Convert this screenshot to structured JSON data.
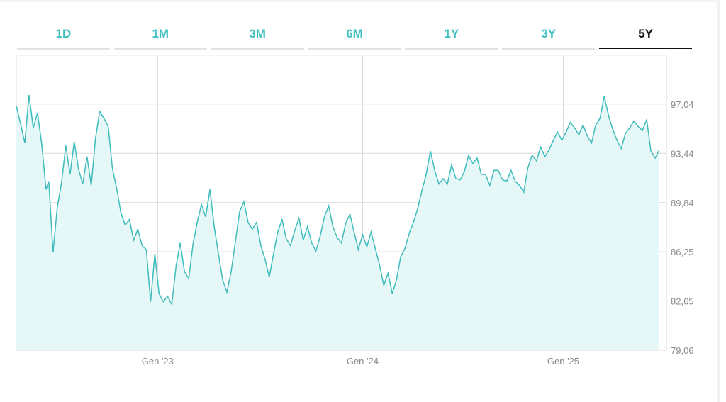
{
  "tabs": [
    {
      "label": "1D",
      "active": false
    },
    {
      "label": "1M",
      "active": false
    },
    {
      "label": "3M",
      "active": false
    },
    {
      "label": "6M",
      "active": false
    },
    {
      "label": "1Y",
      "active": false
    },
    {
      "label": "3Y",
      "active": false
    },
    {
      "label": "5Y",
      "active": true
    }
  ],
  "colors": {
    "accent": "#3fc1c0",
    "fill": "#e6f7f7",
    "line": "#3fbcbb",
    "grid": "#d9d9d9"
  },
  "chart_data": {
    "type": "area",
    "x_tick_labels": [
      "Gen '23",
      "Gen '24",
      "Gen '25"
    ],
    "y_tick_labels": [
      "79,06",
      "82,65",
      "86,25",
      "89,84",
      "93,44",
      "97,04"
    ],
    "y_ticks": [
      79.06,
      82.65,
      86.25,
      89.84,
      93.44,
      97.04
    ],
    "ylim": [
      79.06,
      100.6
    ],
    "x_range": [
      "2022-03",
      "2025-02"
    ],
    "grid": true,
    "series": [
      {
        "values": [
          [
            0.0,
            96.9
          ],
          [
            0.3,
            95.6
          ],
          [
            0.6,
            94.2
          ],
          [
            0.9,
            97.7
          ],
          [
            1.2,
            95.3
          ],
          [
            1.5,
            96.4
          ],
          [
            1.8,
            94.1
          ],
          [
            2.1,
            90.8
          ],
          [
            2.3,
            91.4
          ],
          [
            2.6,
            86.2
          ],
          [
            2.9,
            89.5
          ],
          [
            3.2,
            91.3
          ],
          [
            3.5,
            94.0
          ],
          [
            3.8,
            91.9
          ],
          [
            4.1,
            94.3
          ],
          [
            4.4,
            92.3
          ],
          [
            4.7,
            91.2
          ],
          [
            5.0,
            93.2
          ],
          [
            5.3,
            91.1
          ],
          [
            5.6,
            94.5
          ],
          [
            5.9,
            96.5
          ],
          [
            6.2,
            96.0
          ],
          [
            6.5,
            95.4
          ],
          [
            6.8,
            92.3
          ],
          [
            7.1,
            90.9
          ],
          [
            7.4,
            89.1
          ],
          [
            7.7,
            88.2
          ],
          [
            8.0,
            88.6
          ],
          [
            8.3,
            87.1
          ],
          [
            8.6,
            87.9
          ],
          [
            8.9,
            86.7
          ],
          [
            9.2,
            86.4
          ],
          [
            9.5,
            82.6
          ],
          [
            9.8,
            86.1
          ],
          [
            10.1,
            83.2
          ],
          [
            10.4,
            82.6
          ],
          [
            10.7,
            83.0
          ],
          [
            11.0,
            82.4
          ],
          [
            11.3,
            85.2
          ],
          [
            11.6,
            86.9
          ],
          [
            11.9,
            84.8
          ],
          [
            12.2,
            84.3
          ],
          [
            12.5,
            86.8
          ],
          [
            12.8,
            88.4
          ],
          [
            13.1,
            89.7
          ],
          [
            13.4,
            88.8
          ],
          [
            13.7,
            90.8
          ],
          [
            14.0,
            88.1
          ],
          [
            14.3,
            86.1
          ],
          [
            14.6,
            84.2
          ],
          [
            14.9,
            83.3
          ],
          [
            15.2,
            84.8
          ],
          [
            15.5,
            87.0
          ],
          [
            15.8,
            89.2
          ],
          [
            16.1,
            89.9
          ],
          [
            16.4,
            88.4
          ],
          [
            16.7,
            87.9
          ],
          [
            17.0,
            88.4
          ],
          [
            17.3,
            86.7
          ],
          [
            17.6,
            85.7
          ],
          [
            17.9,
            84.4
          ],
          [
            18.2,
            86.1
          ],
          [
            18.5,
            87.7
          ],
          [
            18.8,
            88.6
          ],
          [
            19.1,
            87.2
          ],
          [
            19.4,
            86.7
          ],
          [
            19.7,
            87.8
          ],
          [
            20.0,
            88.7
          ],
          [
            20.3,
            87.1
          ],
          [
            20.6,
            88.1
          ],
          [
            20.9,
            86.9
          ],
          [
            21.2,
            86.3
          ],
          [
            21.5,
            87.4
          ],
          [
            21.8,
            88.8
          ],
          [
            22.1,
            89.6
          ],
          [
            22.4,
            88.1
          ],
          [
            22.7,
            87.3
          ],
          [
            23.0,
            86.9
          ],
          [
            23.3,
            88.3
          ],
          [
            23.6,
            89.0
          ],
          [
            23.9,
            87.7
          ],
          [
            24.2,
            86.4
          ],
          [
            24.5,
            87.5
          ],
          [
            24.8,
            86.6
          ],
          [
            25.1,
            87.7
          ],
          [
            25.4,
            86.5
          ],
          [
            25.7,
            85.3
          ],
          [
            26.0,
            83.8
          ],
          [
            26.3,
            84.7
          ],
          [
            26.6,
            83.2
          ],
          [
            26.9,
            84.2
          ],
          [
            27.2,
            85.9
          ],
          [
            27.5,
            86.5
          ],
          [
            27.8,
            87.6
          ],
          [
            28.1,
            88.4
          ],
          [
            28.4,
            89.4
          ],
          [
            28.7,
            90.7
          ],
          [
            29.0,
            91.9
          ],
          [
            29.3,
            93.6
          ],
          [
            29.6,
            92.2
          ],
          [
            29.9,
            91.2
          ],
          [
            30.2,
            91.6
          ],
          [
            30.5,
            91.2
          ],
          [
            30.8,
            92.6
          ],
          [
            31.1,
            91.6
          ],
          [
            31.4,
            91.5
          ],
          [
            31.7,
            92.1
          ],
          [
            32.0,
            93.3
          ],
          [
            32.3,
            92.7
          ],
          [
            32.6,
            93.1
          ],
          [
            32.9,
            91.9
          ],
          [
            33.2,
            91.9
          ],
          [
            33.5,
            91.1
          ],
          [
            33.8,
            92.2
          ],
          [
            34.1,
            92.2
          ],
          [
            34.4,
            91.5
          ],
          [
            34.7,
            91.4
          ],
          [
            35.0,
            92.2
          ],
          [
            35.3,
            91.4
          ],
          [
            35.6,
            91.1
          ],
          [
            35.9,
            90.6
          ],
          [
            36.2,
            92.4
          ],
          [
            36.5,
            93.3
          ],
          [
            36.8,
            92.9
          ],
          [
            37.1,
            93.9
          ],
          [
            37.4,
            93.2
          ],
          [
            37.7,
            93.7
          ],
          [
            38.0,
            94.4
          ],
          [
            38.3,
            95.0
          ],
          [
            38.6,
            94.4
          ],
          [
            38.9,
            95.0
          ],
          [
            39.2,
            95.7
          ],
          [
            39.5,
            95.3
          ],
          [
            39.8,
            94.8
          ],
          [
            40.1,
            95.5
          ],
          [
            40.4,
            94.7
          ],
          [
            40.7,
            94.2
          ],
          [
            41.0,
            95.5
          ],
          [
            41.3,
            96.0
          ],
          [
            41.6,
            97.6
          ],
          [
            41.9,
            96.2
          ],
          [
            42.2,
            95.2
          ],
          [
            42.5,
            94.4
          ],
          [
            42.8,
            93.8
          ],
          [
            43.1,
            94.9
          ],
          [
            43.4,
            95.3
          ],
          [
            43.7,
            95.8
          ],
          [
            44.0,
            95.4
          ],
          [
            44.3,
            95.1
          ],
          [
            44.6,
            95.9
          ],
          [
            44.9,
            93.6
          ],
          [
            45.2,
            93.1
          ],
          [
            45.5,
            93.7
          ]
        ]
      }
    ]
  }
}
